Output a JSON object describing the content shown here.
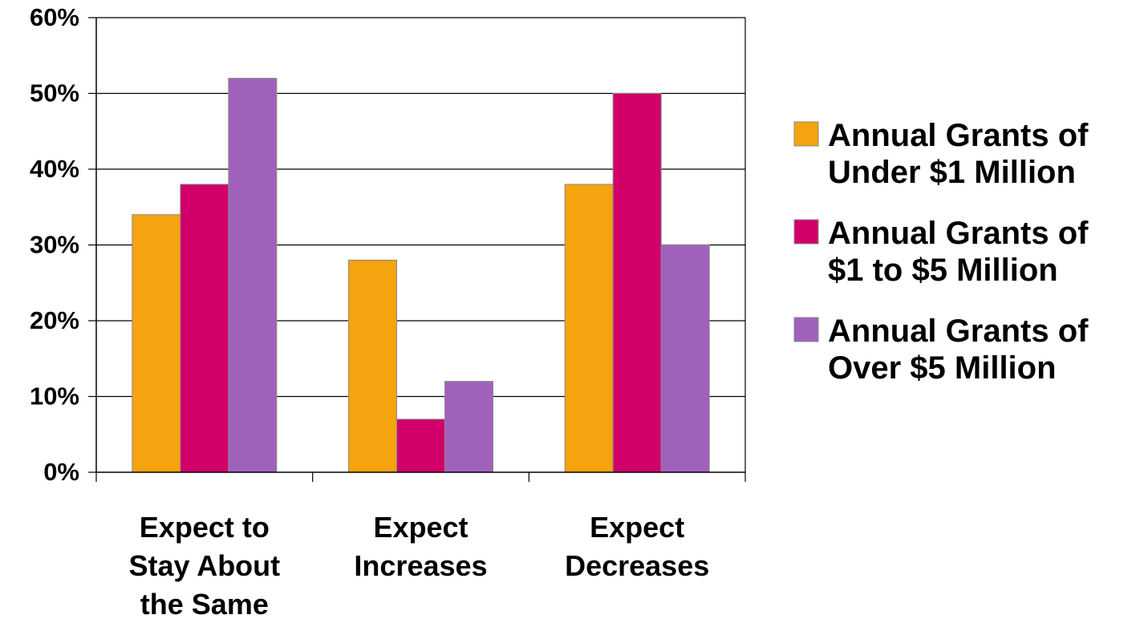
{
  "chart_data": {
    "type": "bar",
    "title": "",
    "xlabel": "",
    "ylabel": "",
    "ylim": [
      0,
      60
    ],
    "yticks": [
      0,
      10,
      20,
      30,
      40,
      50,
      60
    ],
    "ytick_labels": [
      "0%",
      "10%",
      "20%",
      "30%",
      "40%",
      "50%",
      "60%"
    ],
    "grid": true,
    "legend_position": "right",
    "categories": [
      [
        "Expect to",
        "Stay About",
        "the Same"
      ],
      [
        "Expect",
        "Increases"
      ],
      [
        "Expect",
        "Decreases"
      ]
    ],
    "series": [
      {
        "name": [
          "Annual Grants of",
          "Under $1 Million"
        ],
        "color": "#F5A30F",
        "values": [
          34,
          28,
          38
        ]
      },
      {
        "name": [
          "Annual Grants of",
          "$1 to $5 Million"
        ],
        "color": "#D1006A",
        "values": [
          38,
          7,
          50
        ]
      },
      {
        "name": [
          "Annual Grants of",
          "Over $5 Million"
        ],
        "color": "#A061BC",
        "values": [
          52,
          12,
          30
        ]
      }
    ]
  }
}
